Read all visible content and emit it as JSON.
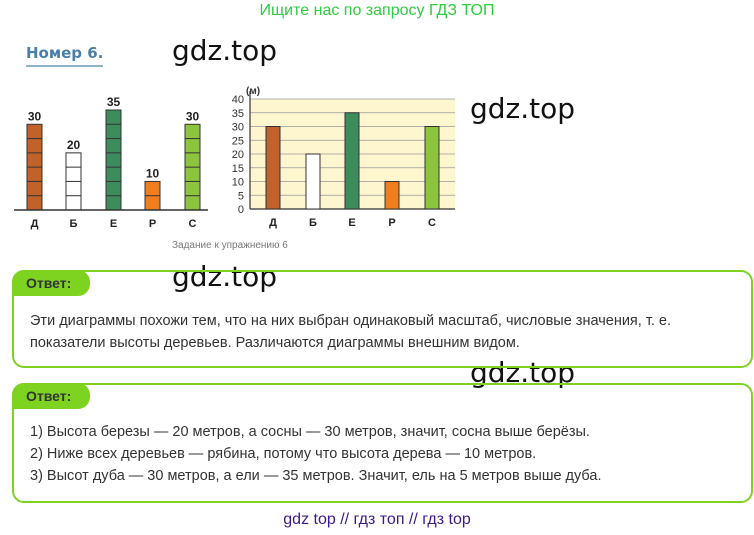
{
  "banner": "Ищите нас по запросу ГДЗ ТОП",
  "task_number": "Номер 6.",
  "watermark": "gdz.top",
  "caption": "Задание к упражнению 6",
  "colors": {
    "Д": "#c0622a",
    "Б": "#ffffff",
    "Е": "#3d8c5c",
    "Р": "#f07d1e",
    "С": "#8cc43e",
    "answer_border": "#7ed321",
    "banner": "#2ecc40",
    "footer": "#3d1a8c"
  },
  "chart_data": [
    {
      "type": "bar",
      "categories": [
        "Д",
        "Б",
        "Е",
        "Р",
        "С"
      ],
      "values": [
        30,
        20,
        35,
        10,
        30
      ],
      "data_labels": [
        "30",
        "20",
        "35",
        "10",
        "30"
      ],
      "segment_step": 5,
      "grid": false
    },
    {
      "type": "bar",
      "categories": [
        "Д",
        "Б",
        "Е",
        "Р",
        "С"
      ],
      "values": [
        30,
        20,
        35,
        10,
        30
      ],
      "ylabel": "(м)",
      "ylim": [
        0,
        40
      ],
      "yticks": [
        "0",
        "5",
        "10",
        "15",
        "20",
        "25",
        "30",
        "35",
        "40"
      ],
      "grid": true,
      "background": "#fdf6cf"
    }
  ],
  "answer1": {
    "label": "Ответ:",
    "lines": [
      "Эти диаграммы похожи тем, что на них выбран одинаковый масштаб, числовые значения, т. е.",
      "показатели высоты деревьев. Различаются диаграммы внешним видом."
    ]
  },
  "answer2": {
    "label": "Ответ:",
    "lines": [
      "1) Высота березы — 20 метров, а сосны — 30 метров, значит, сосна выше берёзы.",
      "2) Ниже всех деревьев — рябина, потому что высота дерева — 10 метров.",
      "3) Высот дуба — 30 метров, а ели — 35 метров. Значит, ель на 5 метров выше дуба."
    ]
  },
  "footer": "gdz top  //  гдз топ  //  гдз top"
}
